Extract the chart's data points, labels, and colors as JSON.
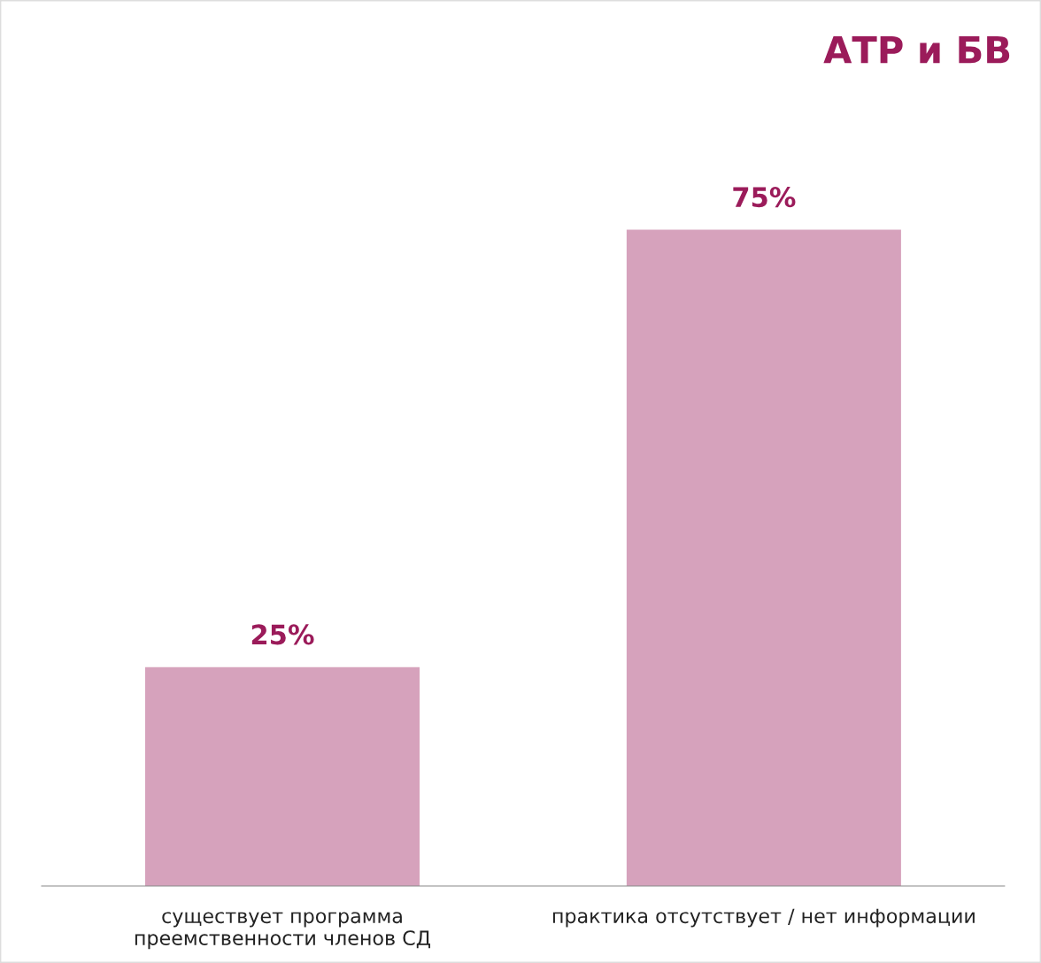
{
  "chart_data": {
    "type": "bar",
    "title": "АТР и БВ",
    "categories": [
      "существует программа\nпреемственности членов СД",
      "практика отсутствует / нет информации"
    ],
    "values": [
      25,
      75
    ],
    "color": "#d6a2bc",
    "data_labels": true,
    "value_labels": [
      "25%",
      "75%"
    ],
    "tick_labels": "x",
    "grid": false,
    "legend": false
  }
}
